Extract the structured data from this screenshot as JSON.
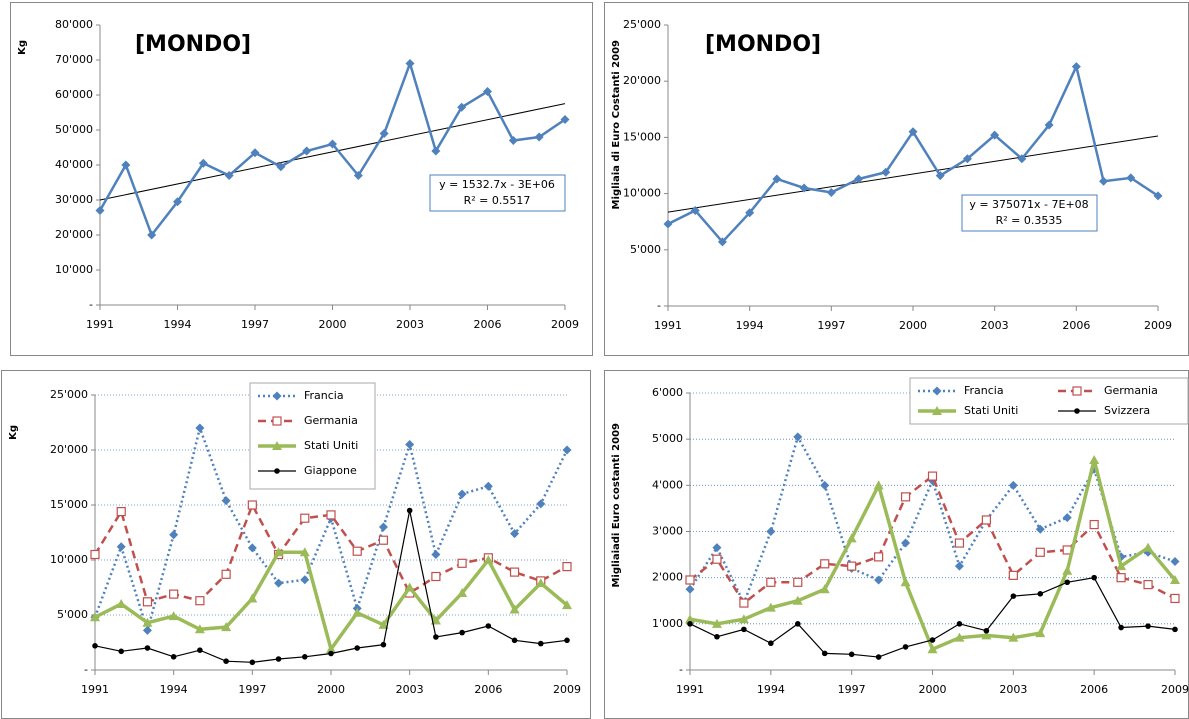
{
  "chart_data": [
    {
      "type": "line",
      "title": "[MONDO]",
      "y_label": "Kg",
      "x": [
        1991,
        1992,
        1993,
        1994,
        1995,
        1996,
        1997,
        1998,
        1999,
        2000,
        2001,
        2002,
        2003,
        2004,
        2005,
        2006,
        2007,
        2008,
        2009
      ],
      "values": [
        27000,
        40000,
        20000,
        29500,
        40500,
        37000,
        43500,
        39500,
        44000,
        46000,
        37000,
        49000,
        69000,
        44000,
        56500,
        61000,
        47000,
        48000,
        53000
      ],
      "color": "#4f81bd",
      "marker": "diamond",
      "trendline": true,
      "annotations": [
        "y = 1532.7x - 3E+06",
        "R² = 0.5517"
      ],
      "xlim": [
        1991,
        2009
      ],
      "xticks": [
        1991,
        1994,
        1997,
        2000,
        2003,
        2006,
        2009
      ],
      "ylim": [
        0,
        80000
      ],
      "yticks": [
        {
          "value": 0,
          "label": "-"
        },
        {
          "value": 10000,
          "label": "10'000"
        },
        {
          "value": 20000,
          "label": "20'000"
        },
        {
          "value": 30000,
          "label": "30'000"
        },
        {
          "value": 40000,
          "label": "40'000"
        },
        {
          "value": 50000,
          "label": "50'000"
        },
        {
          "value": 60000,
          "label": "60'000"
        },
        {
          "value": 70000,
          "label": "70'000"
        },
        {
          "value": 80000,
          "label": "80'000"
        }
      ],
      "grid": false
    },
    {
      "type": "line",
      "title": "[MONDO]",
      "y_label": "Migliaia di Euro Costanti 2009",
      "x": [
        1991,
        1992,
        1993,
        1994,
        1995,
        1996,
        1997,
        1998,
        1999,
        2000,
        2001,
        2002,
        2003,
        2004,
        2005,
        2006,
        2007,
        2008,
        2009
      ],
      "values": [
        7300,
        8500,
        5700,
        8300,
        11300,
        10500,
        10100,
        11300,
        11900,
        15500,
        11600,
        13100,
        15200,
        13100,
        16100,
        21300,
        11100,
        11400,
        9800
      ],
      "color": "#4f81bd",
      "marker": "diamond",
      "trendline": true,
      "annotations": [
        "y = 375071x - 7E+08",
        "R² = 0.3535"
      ],
      "xlim": [
        1991,
        2009
      ],
      "xticks": [
        1991,
        1994,
        1997,
        2000,
        2003,
        2006,
        2009
      ],
      "ylim": [
        0,
        25000
      ],
      "yticks": [
        {
          "value": 0,
          "label": "-"
        },
        {
          "value": 5000,
          "label": "5'000"
        },
        {
          "value": 10000,
          "label": "10'000"
        },
        {
          "value": 15000,
          "label": "15'000"
        },
        {
          "value": 20000,
          "label": "20'000"
        },
        {
          "value": 25000,
          "label": "25'000"
        }
      ],
      "grid": false
    },
    {
      "type": "line",
      "y_label": "Kg",
      "x": [
        1991,
        1992,
        1993,
        1994,
        1995,
        1996,
        1997,
        1998,
        1999,
        2000,
        2001,
        2002,
        2003,
        2004,
        2005,
        2006,
        2007,
        2008,
        2009
      ],
      "series": [
        {
          "name": "Francia",
          "color": "#4f81bd",
          "marker": "diamond",
          "line_style": "dotted",
          "values": [
            4800,
            11200,
            3600,
            12300,
            22000,
            15400,
            11100,
            7900,
            8200,
            13800,
            5600,
            13000,
            20500,
            10500,
            16000,
            16700,
            12400,
            15100,
            20000
          ]
        },
        {
          "name": "Germania",
          "color": "#c0504d",
          "marker": "square",
          "line_style": "dashed",
          "values": [
            10500,
            14400,
            6200,
            6900,
            6300,
            8700,
            15000,
            10500,
            13800,
            14100,
            10800,
            11800,
            7000,
            8500,
            9700,
            10200,
            8900,
            8100,
            9400
          ]
        },
        {
          "name": "Stati Uniti",
          "color": "#9bbb59",
          "marker": "triangle",
          "line_style": "thick",
          "values": [
            4800,
            6000,
            4300,
            4900,
            3700,
            3900,
            6500,
            10700,
            10700,
            1900,
            5200,
            4100,
            7500,
            4500,
            7000,
            10000,
            5500,
            7900,
            5900
          ]
        },
        {
          "name": "Giappone",
          "color": "#000000",
          "marker": "circle",
          "line_style": "solid",
          "values": [
            2200,
            1700,
            2000,
            1200,
            1800,
            800,
            700,
            1000,
            1200,
            1500,
            2000,
            2300,
            14500,
            3000,
            3400,
            4000,
            2700,
            2400,
            2700
          ]
        }
      ],
      "legend": "top-center",
      "legend_columns": 1,
      "xlim": [
        1991,
        2009
      ],
      "xticks": [
        1991,
        1994,
        1997,
        2000,
        2003,
        2006,
        2009
      ],
      "ylim": [
        0,
        25000
      ],
      "yticks": [
        {
          "value": 0,
          "label": "-"
        },
        {
          "value": 5000,
          "label": "5'000"
        },
        {
          "value": 10000,
          "label": "10'000"
        },
        {
          "value": 15000,
          "label": "15'000"
        },
        {
          "value": 20000,
          "label": "20'000"
        },
        {
          "value": 25000,
          "label": "25'000"
        }
      ],
      "grid": true
    },
    {
      "type": "line",
      "y_label": "Migliaiadi Euro costanti 2009",
      "x": [
        1991,
        1992,
        1993,
        1994,
        1995,
        1996,
        1997,
        1998,
        1999,
        2000,
        2001,
        2002,
        2003,
        2004,
        2005,
        2006,
        2007,
        2008,
        2009
      ],
      "series": [
        {
          "name": "Francia",
          "color": "#4f81bd",
          "marker": "diamond",
          "line_style": "dotted",
          "values": [
            1750,
            2650,
            1450,
            3000,
            5050,
            4000,
            2200,
            1950,
            2750,
            4100,
            2250,
            3250,
            4000,
            3050,
            3300,
            4350,
            2450,
            2550,
            2350
          ]
        },
        {
          "name": "Germania",
          "color": "#c0504d",
          "marker": "square",
          "line_style": "dashed",
          "values": [
            1950,
            2400,
            1450,
            1900,
            1900,
            2300,
            2250,
            2450,
            3750,
            4200,
            2750,
            3250,
            2050,
            2550,
            2600,
            3150,
            2000,
            1850,
            1550
          ]
        },
        {
          "name": "Stati Uniti",
          "color": "#9bbb59",
          "marker": "triangle",
          "line_style": "thick",
          "values": [
            1100,
            1000,
            1100,
            1350,
            1500,
            1750,
            2850,
            4000,
            1900,
            450,
            700,
            750,
            700,
            800,
            2150,
            4550,
            2250,
            2650,
            1950
          ]
        },
        {
          "name": "Svizzera",
          "color": "#000000",
          "marker": "circle",
          "line_style": "solid",
          "values": [
            1000,
            720,
            880,
            580,
            1000,
            360,
            340,
            280,
            500,
            650,
            1000,
            850,
            1600,
            1650,
            1900,
            2000,
            920,
            950,
            880
          ]
        }
      ],
      "legend": "top-right",
      "legend_columns": 2,
      "xlim": [
        1991,
        2009
      ],
      "xticks": [
        1991,
        1994,
        1997,
        2000,
        2003,
        2006,
        2009
      ],
      "ylim": [
        0,
        6000
      ],
      "yticks": [
        {
          "value": 0,
          "label": "-"
        },
        {
          "value": 1000,
          "label": "1'000"
        },
        {
          "value": 2000,
          "label": "2'000"
        },
        {
          "value": 3000,
          "label": "3'000"
        },
        {
          "value": 4000,
          "label": "4'000"
        },
        {
          "value": 5000,
          "label": "5'000"
        },
        {
          "value": 6000,
          "label": "6'000"
        }
      ],
      "grid": true
    }
  ]
}
